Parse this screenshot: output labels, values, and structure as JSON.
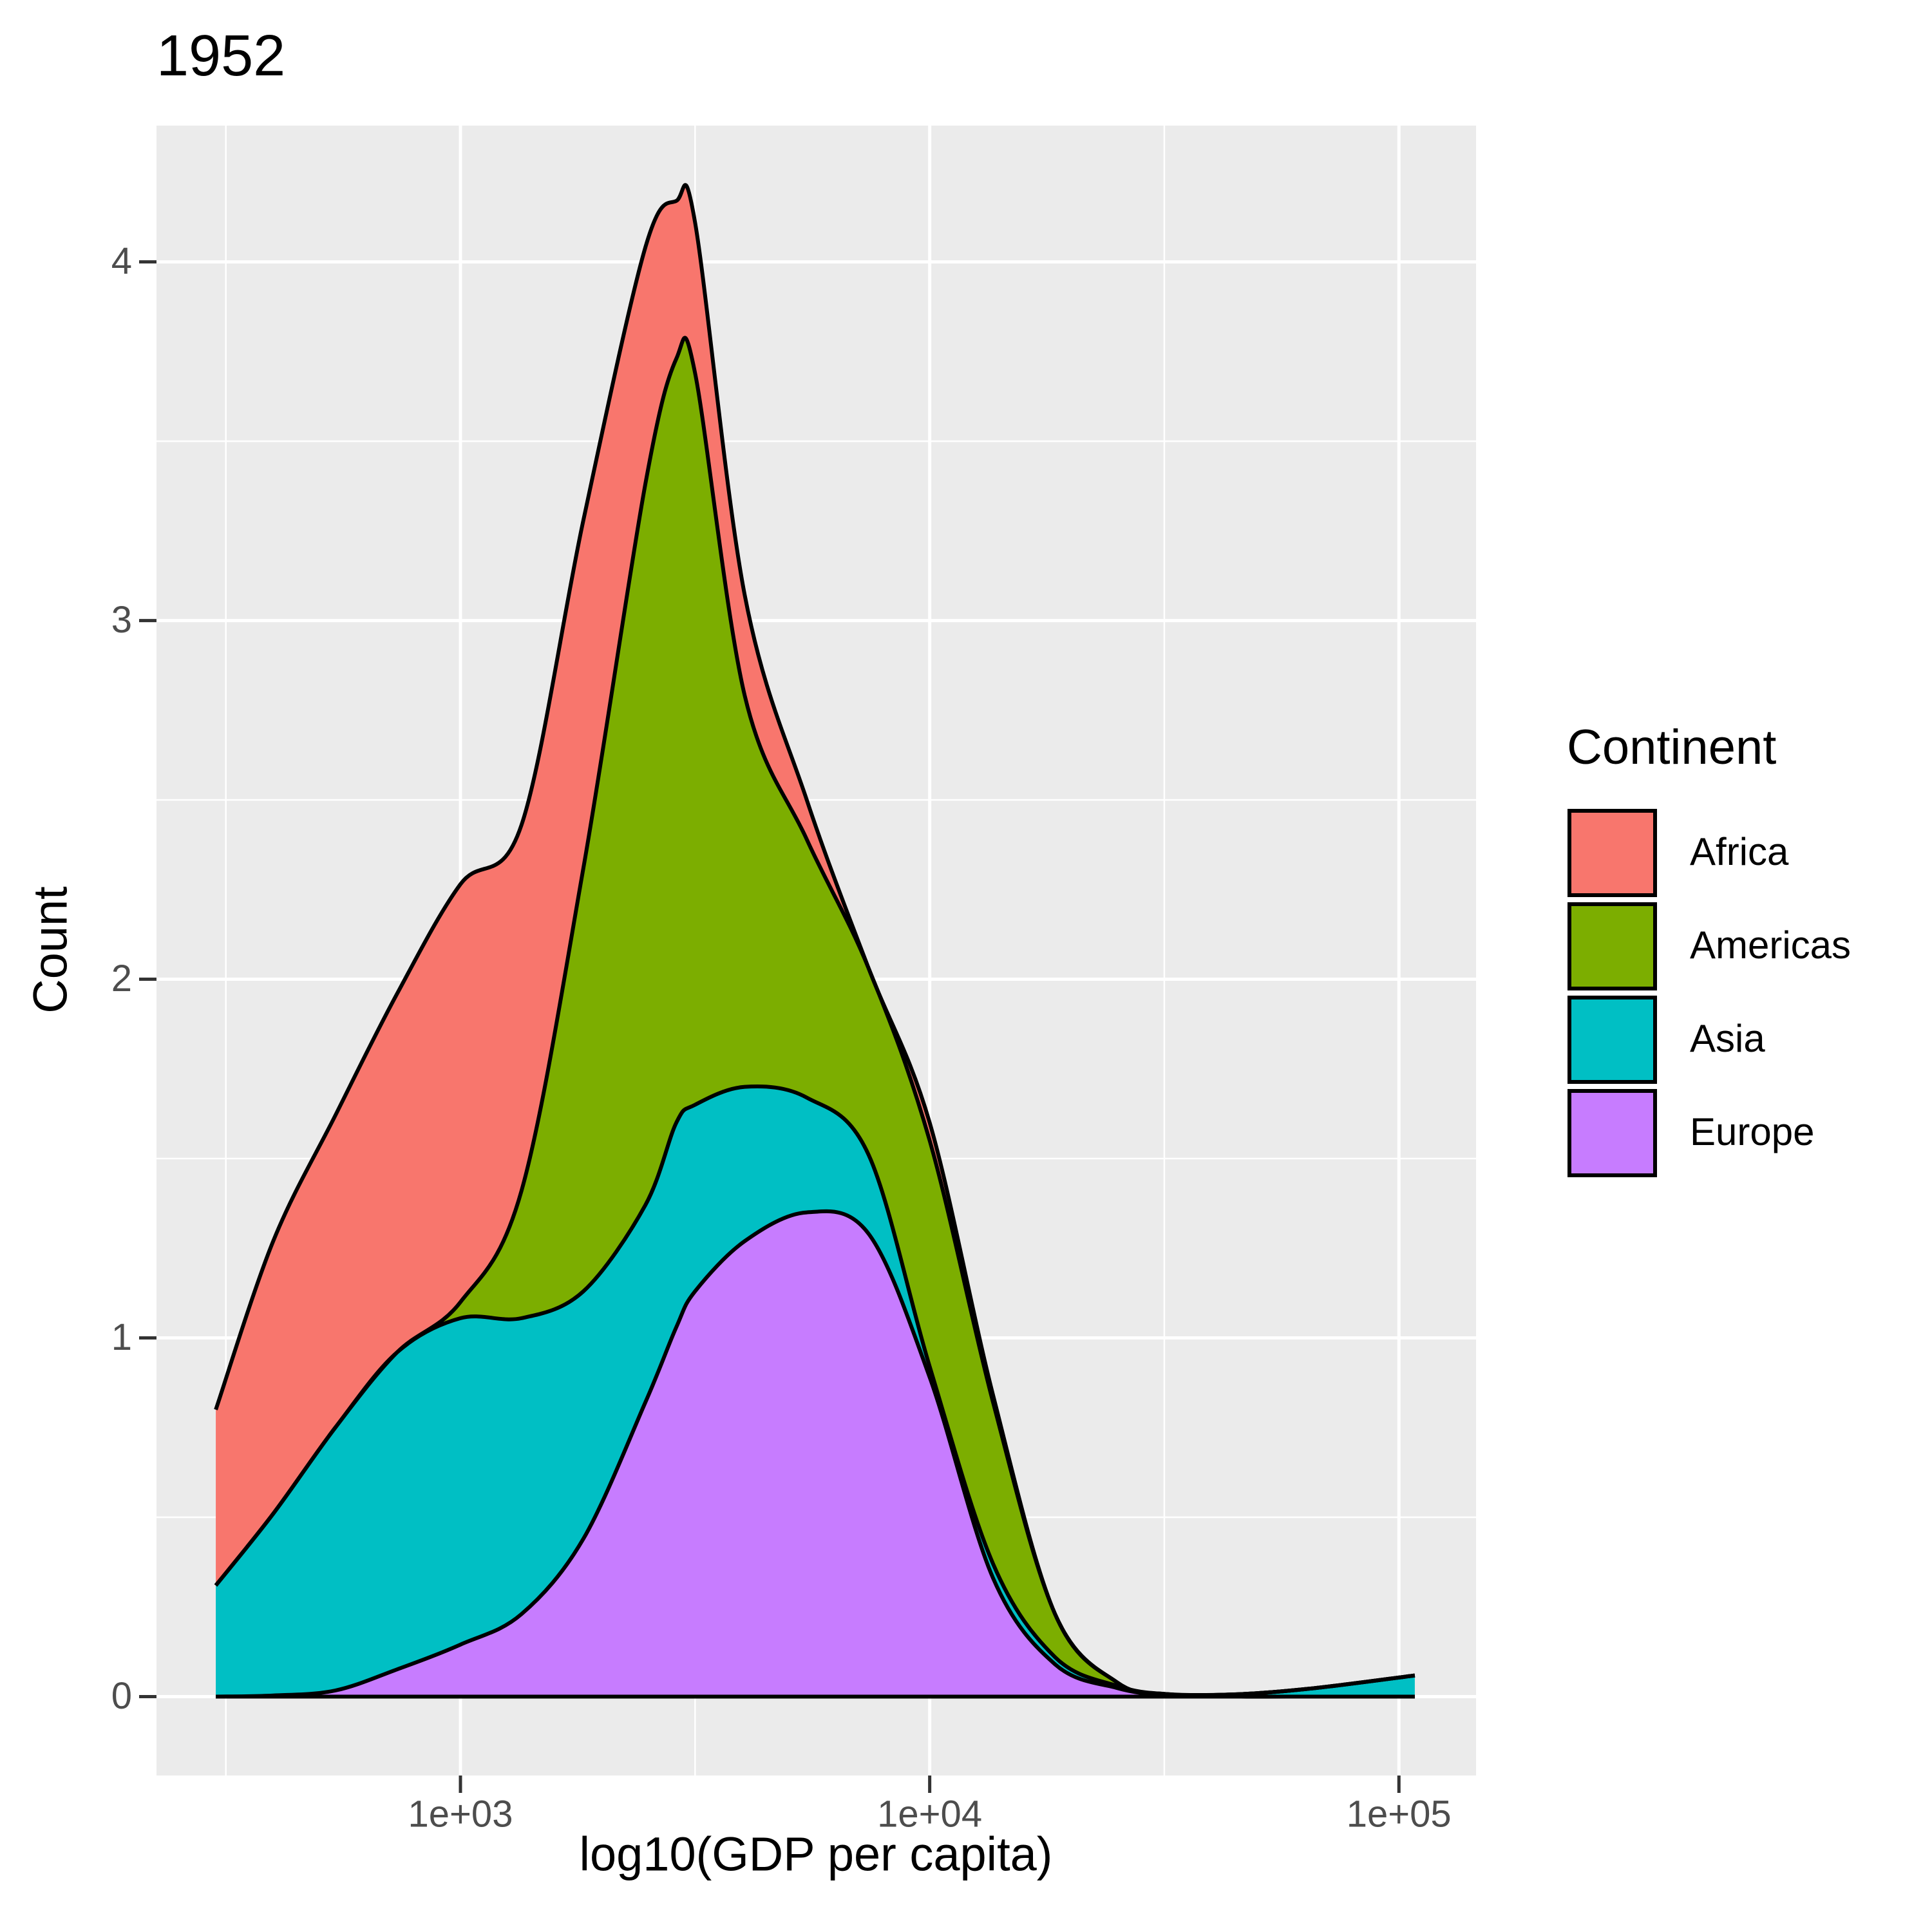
{
  "chart_data": {
    "type": "stacked_area",
    "title": "1952",
    "x_label": "log10(GDP per capita)",
    "y_label": "Count",
    "x_scale": "log",
    "x": [
      301,
      399,
      541,
      733,
      1000,
      1349,
      1828,
      2477,
      2884,
      3162,
      4036,
      5470,
      7413,
      10000,
      13650,
      18500,
      25060,
      32000,
      46100,
      66500,
      108100
    ],
    "series": [
      {
        "name": "Africa",
        "color": "#F8766D",
        "values": [
          0.49,
          0.76,
          0.87,
          1.0,
          1.165,
          1.02,
          0.97,
          0.66,
          0.44,
          0.42,
          0.28,
          0.11,
          0,
          0.05,
          0.02,
          0,
          0,
          0,
          0,
          0,
          0
        ]
      },
      {
        "name": "Americas",
        "color": "#7CAE00",
        "values": [
          0,
          0,
          0,
          0,
          0.045,
          0.355,
          1.18,
          2.01,
          2.13,
          2.04,
          1.09,
          0.72,
          0.52,
          0.63,
          0.45,
          0.12,
          0.01,
          0,
          0,
          0,
          0
        ]
      },
      {
        "name": "Asia",
        "color": "#00BFC4",
        "values": [
          0.31,
          0.507,
          0.733,
          0.884,
          0.91,
          0.825,
          0.69,
          0.55,
          0.57,
          0.52,
          0.43,
          0.32,
          0.22,
          0.03,
          0.04,
          0.02,
          0.006,
          0.003,
          0.007,
          0.024,
          0.059
        ]
      },
      {
        "name": "Europe",
        "color": "#C77CFF",
        "values": [
          0,
          0.003,
          0.017,
          0.076,
          0.145,
          0.23,
          0.44,
          0.82,
          1.03,
          1.13,
          1.27,
          1.35,
          1.29,
          0.89,
          0.33,
          0.09,
          0.024,
          0.004,
          0,
          0,
          0
        ]
      }
    ],
    "xlim": [
      225,
      146000
    ],
    "ylim": [
      -0.22,
      4.38
    ],
    "xticks": [
      {
        "value": 1000,
        "label": "1e+03"
      },
      {
        "value": 10000,
        "label": "1e+04"
      },
      {
        "value": 100000,
        "label": "1e+05"
      }
    ],
    "yticks": [
      0,
      1,
      2,
      3,
      4
    ],
    "grid": true,
    "legend_title": "Continent",
    "legend_position": "right"
  }
}
